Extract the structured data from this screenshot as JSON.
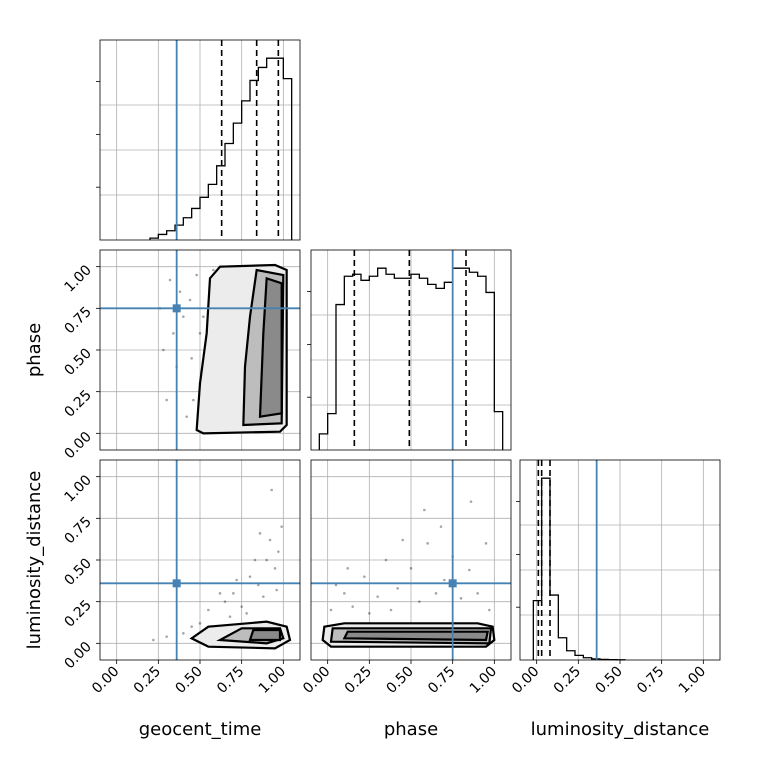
{
  "chart_data": {
    "type": "corner",
    "parameters": [
      "geocent_time",
      "phase",
      "luminosity_distance"
    ],
    "truths": {
      "geocent_time": 0.36,
      "phase": 0.75,
      "luminosity_distance": 0.36
    },
    "axis_range": [
      -0.1,
      1.1
    ],
    "tick_values": [
      0,
      0.25,
      0.5,
      0.75,
      1.0
    ],
    "tick_labels": [
      "0.00",
      "0.25",
      "0.50",
      "0.75",
      "1.00"
    ],
    "grid": true,
    "histograms": {
      "geocent_time": {
        "bin_edges": [
          0.2,
          0.25,
          0.3,
          0.35,
          0.4,
          0.45,
          0.5,
          0.55,
          0.6,
          0.65,
          0.7,
          0.75,
          0.8,
          0.85,
          0.9,
          0.95,
          1.0,
          1.05
        ],
        "counts": [
          0.01,
          0.03,
          0.05,
          0.08,
          0.12,
          0.17,
          0.23,
          0.3,
          0.4,
          0.52,
          0.63,
          0.75,
          0.86,
          0.93,
          0.98,
          0.98,
          0.87
        ],
        "quantiles": [
          0.63,
          0.84,
          0.97
        ]
      },
      "phase": {
        "bin_edges": [
          -0.05,
          0.0,
          0.05,
          0.1,
          0.15,
          0.2,
          0.25,
          0.3,
          0.35,
          0.4,
          0.45,
          0.5,
          0.55,
          0.6,
          0.65,
          0.7,
          0.75,
          0.8,
          0.85,
          0.9,
          0.95,
          1.0,
          1.05
        ],
        "counts": [
          0.08,
          0.18,
          0.72,
          0.86,
          0.87,
          0.84,
          0.86,
          0.9,
          0.87,
          0.85,
          0.85,
          0.87,
          0.85,
          0.82,
          0.8,
          0.83,
          0.9,
          0.9,
          0.88,
          0.86,
          0.78,
          0.19
        ],
        "quantiles": [
          0.16,
          0.49,
          0.83
        ]
      },
      "luminosity_distance": {
        "bin_edges": [
          -0.02,
          0.03,
          0.08,
          0.13,
          0.18,
          0.23,
          0.28,
          0.33,
          0.38,
          0.43,
          0.48,
          0.53
        ],
        "counts": [
          0.32,
          0.98,
          0.35,
          0.12,
          0.05,
          0.025,
          0.012,
          0.006,
          0.003,
          0.002,
          0.001
        ],
        "quantiles": [
          0.01,
          0.03,
          0.08
        ]
      }
    },
    "scatter_panels": [
      {
        "x": "geocent_time",
        "y": "phase",
        "points": [
          [
            0.3,
            0.2
          ],
          [
            0.34,
            0.6
          ],
          [
            0.38,
            0.85
          ],
          [
            0.42,
            0.1
          ],
          [
            0.45,
            0.45
          ],
          [
            0.48,
            0.95
          ],
          [
            0.5,
            0.3
          ],
          [
            0.52,
            0.7
          ],
          [
            0.53,
            0.05
          ],
          [
            0.55,
            0.55
          ],
          [
            0.56,
            0.9
          ],
          [
            0.57,
            0.15
          ],
          [
            0.58,
            0.4
          ],
          [
            0.59,
            0.78
          ],
          [
            0.6,
            0.62
          ],
          [
            0.61,
            0.25
          ],
          [
            0.62,
            0.98
          ],
          [
            0.63,
            0.08
          ],
          [
            0.64,
            0.5
          ],
          [
            0.65,
            0.35
          ],
          [
            0.4,
            0.7
          ],
          [
            0.36,
            0.4
          ],
          [
            0.46,
            0.2
          ],
          [
            0.44,
            0.8
          ],
          [
            0.5,
            0.6
          ],
          [
            0.32,
            0.92
          ],
          [
            0.28,
            0.5
          ],
          [
            0.26,
            0.75
          ],
          [
            0.55,
            0.02
          ],
          [
            0.58,
            0.98
          ]
        ]
      },
      {
        "x": "geocent_time",
        "y": "luminosity_distance",
        "points": [
          [
            0.22,
            0.02
          ],
          [
            0.3,
            0.04
          ],
          [
            0.4,
            0.06
          ],
          [
            0.5,
            0.12
          ],
          [
            0.55,
            0.2
          ],
          [
            0.6,
            0.1
          ],
          [
            0.65,
            0.25
          ],
          [
            0.7,
            0.3
          ],
          [
            0.75,
            0.22
          ],
          [
            0.8,
            0.4
          ],
          [
            0.85,
            0.35
          ],
          [
            0.9,
            0.5
          ],
          [
            0.92,
            0.62
          ],
          [
            0.95,
            0.45
          ],
          [
            0.97,
            0.55
          ],
          [
            0.88,
            0.28
          ],
          [
            0.78,
            0.18
          ],
          [
            0.68,
            0.16
          ],
          [
            0.93,
            0.92
          ],
          [
            0.99,
            0.7
          ],
          [
            0.86,
            0.66
          ],
          [
            0.72,
            0.38
          ],
          [
            0.62,
            0.3
          ],
          [
            0.45,
            0.1
          ],
          [
            0.96,
            0.32
          ],
          [
            0.83,
            0.5
          ]
        ]
      },
      {
        "x": "phase",
        "y": "luminosity_distance",
        "points": [
          [
            0.02,
            0.2
          ],
          [
            0.1,
            0.3
          ],
          [
            0.15,
            0.22
          ],
          [
            0.22,
            0.4
          ],
          [
            0.3,
            0.28
          ],
          [
            0.35,
            0.5
          ],
          [
            0.42,
            0.33
          ],
          [
            0.5,
            0.45
          ],
          [
            0.55,
            0.25
          ],
          [
            0.6,
            0.6
          ],
          [
            0.65,
            0.3
          ],
          [
            0.7,
            0.38
          ],
          [
            0.75,
            0.52
          ],
          [
            0.8,
            0.27
          ],
          [
            0.85,
            0.44
          ],
          [
            0.9,
            0.3
          ],
          [
            0.95,
            0.6
          ],
          [
            0.97,
            0.2
          ],
          [
            0.58,
            0.8
          ],
          [
            0.86,
            0.85
          ],
          [
            0.45,
            0.62
          ],
          [
            0.25,
            0.18
          ],
          [
            0.05,
            0.35
          ],
          [
            0.68,
            0.7
          ],
          [
            0.38,
            0.2
          ],
          [
            0.12,
            0.45
          ]
        ]
      }
    ]
  }
}
